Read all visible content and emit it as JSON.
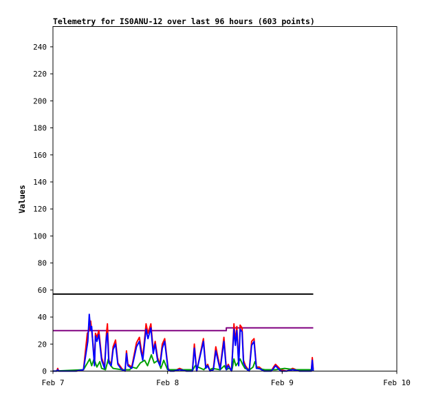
{
  "chart_data": {
    "type": "line",
    "title": "Telemetry for IS0ANU-12 over last 96 hours (603 points)",
    "ylabel": "Values",
    "xlabel": "",
    "ylim": [
      0,
      255
    ],
    "yticks": [
      0,
      20,
      40,
      60,
      80,
      100,
      120,
      140,
      160,
      180,
      200,
      220,
      240
    ],
    "x_unit": "hours since Feb 7 00:00",
    "xlim": [
      0,
      72
    ],
    "xticks": [
      {
        "x": 0,
        "label": "Feb 7"
      },
      {
        "x": 24,
        "label": "Feb 8"
      },
      {
        "x": 48,
        "label": "Feb 9"
      },
      {
        "x": 72,
        "label": "Feb 10"
      }
    ],
    "grid": false,
    "series": [
      {
        "color": "#000000",
        "style": "step",
        "x": [
          0,
          54.5
        ],
        "values": [
          57,
          57
        ]
      },
      {
        "color": "#800080",
        "style": "step",
        "x": [
          0,
          36.3,
          36.3,
          54.5
        ],
        "values": [
          30,
          30,
          32,
          32
        ]
      },
      {
        "color": "#ff0000",
        "x": [
          0,
          0.8,
          1,
          1.2,
          4.8,
          6.4,
          7.2,
          7.6,
          7.9,
          8.1,
          8.4,
          8.7,
          8.9,
          9.2,
          9.6,
          10.2,
          10.8,
          11.2,
          11.4,
          11.7,
          12.2,
          12.6,
          13.1,
          13.6,
          14.4,
          15.1,
          15.4,
          15.7,
          16.5,
          17.5,
          18.1,
          18.4,
          18.8,
          19.5,
          19.9,
          20.5,
          21,
          21.4,
          21.9,
          22.4,
          22.9,
          23.4,
          24.1,
          24.6,
          25.3,
          26.5,
          28,
          29.2,
          29.6,
          30.1,
          31.5,
          32,
          32.4,
          32.9,
          33.6,
          34.1,
          35,
          35.8,
          36.3,
          36.7,
          37.4,
          37.9,
          38.2,
          38.5,
          38.9,
          39.2,
          39.6,
          39.9,
          40.3,
          40.7,
          41.1,
          41.6,
          42.1,
          42.6,
          43.2,
          44.2,
          45.2,
          45.7,
          46.2,
          46.6,
          47.7,
          48.9,
          50.2,
          51.7,
          52.6,
          53.1,
          53.4,
          53.8,
          54.1,
          54.3,
          54.5
        ],
        "values": [
          0,
          0,
          2,
          0,
          0,
          1,
          28,
          30,
          37,
          30,
          20,
          5,
          28,
          25,
          30,
          10,
          3,
          28,
          35,
          8,
          5,
          18,
          23,
          6,
          2,
          0,
          15,
          5,
          3,
          21,
          25,
          18,
          10,
          35,
          28,
          35,
          15,
          22,
          10,
          5,
          20,
          24,
          2,
          0,
          0,
          2,
          0,
          0,
          20,
          0,
          24,
          3,
          5,
          0,
          2,
          18,
          2,
          25,
          2,
          5,
          0,
          35,
          22,
          33,
          5,
          34,
          32,
          8,
          4,
          2,
          0,
          22,
          24,
          3,
          3,
          0,
          1,
          0,
          3,
          5,
          1,
          0,
          2,
          0,
          1,
          0,
          1,
          0,
          0,
          10,
          1
        ]
      },
      {
        "color": "#00a000",
        "x": [
          0,
          6.4,
          7.7,
          8.1,
          8.6,
          9.2,
          9.8,
          10.2,
          11,
          11.6,
          12.1,
          12.6,
          14.4,
          16.1,
          16.5,
          17.5,
          18.3,
          19.2,
          19.8,
          20.6,
          21.2,
          22,
          22.6,
          23.2,
          24,
          26,
          28,
          29.3,
          29.8,
          31.6,
          32.3,
          32.8,
          33.4,
          35,
          35.9,
          36.3,
          36.8,
          37.5,
          37.9,
          38.3,
          38.9,
          39.2,
          39.7,
          40.2,
          41.2,
          41.9,
          42.3,
          42.8,
          44.4,
          46.6,
          48.5,
          50.6,
          51.8,
          54.3,
          54.5
        ],
        "values": [
          0,
          1,
          9,
          4,
          9,
          3,
          7,
          2,
          1,
          9,
          4,
          2,
          1,
          1,
          3,
          2,
          6,
          8,
          4,
          12,
          6,
          8,
          2,
          8,
          1,
          1,
          1,
          1,
          4,
          1,
          4,
          1,
          2,
          1,
          4,
          1,
          2,
          1,
          9,
          4,
          7,
          9,
          5,
          2,
          1,
          3,
          7,
          2,
          1,
          1,
          2,
          1,
          1,
          1,
          1
        ]
      },
      {
        "color": "#0000ff",
        "x": [
          0,
          0.8,
          1,
          1.2,
          4.8,
          6.4,
          7.3,
          7.6,
          7.9,
          8.1,
          8.4,
          8.7,
          8.9,
          9.2,
          9.6,
          10.2,
          10.8,
          11.2,
          11.4,
          11.7,
          12.2,
          12.6,
          13.1,
          13.6,
          14.4,
          15.1,
          15.4,
          15.7,
          16.5,
          17.5,
          18.1,
          18.4,
          18.8,
          19.5,
          19.9,
          20.5,
          21,
          21.4,
          21.9,
          22.4,
          22.9,
          23.4,
          24.1,
          24.6,
          25.3,
          26.5,
          28,
          29.2,
          29.6,
          30.1,
          31.5,
          32,
          32.4,
          32.9,
          33.6,
          34.1,
          35,
          35.8,
          36.3,
          36.7,
          37.4,
          37.9,
          38.2,
          38.5,
          38.9,
          39.2,
          39.6,
          39.9,
          40.3,
          40.7,
          41.1,
          41.6,
          42.1,
          42.6,
          43.2,
          44.2,
          45.2,
          45.7,
          46.2,
          46.6,
          47.7,
          48.9,
          50.2,
          51.7,
          52.6,
          53.1,
          53.4,
          53.8,
          54.1,
          54.3,
          54.5
        ],
        "values": [
          0,
          0,
          1,
          0,
          0,
          1,
          22,
          42,
          30,
          33,
          18,
          4,
          26,
          22,
          27,
          8,
          2,
          25,
          28,
          6,
          4,
          16,
          20,
          5,
          1,
          0,
          13,
          4,
          2,
          18,
          22,
          15,
          8,
          31,
          24,
          32,
          13,
          20,
          8,
          4,
          17,
          22,
          1,
          0,
          0,
          1,
          0,
          0,
          17,
          0,
          22,
          2,
          4,
          0,
          1,
          15,
          1,
          22,
          1,
          4,
          0,
          31,
          19,
          30,
          4,
          31,
          29,
          6,
          3,
          1,
          0,
          19,
          22,
          2,
          2,
          0,
          0,
          0,
          2,
          4,
          0,
          0,
          1,
          0,
          0,
          0,
          0,
          0,
          0,
          8,
          0
        ]
      }
    ]
  }
}
